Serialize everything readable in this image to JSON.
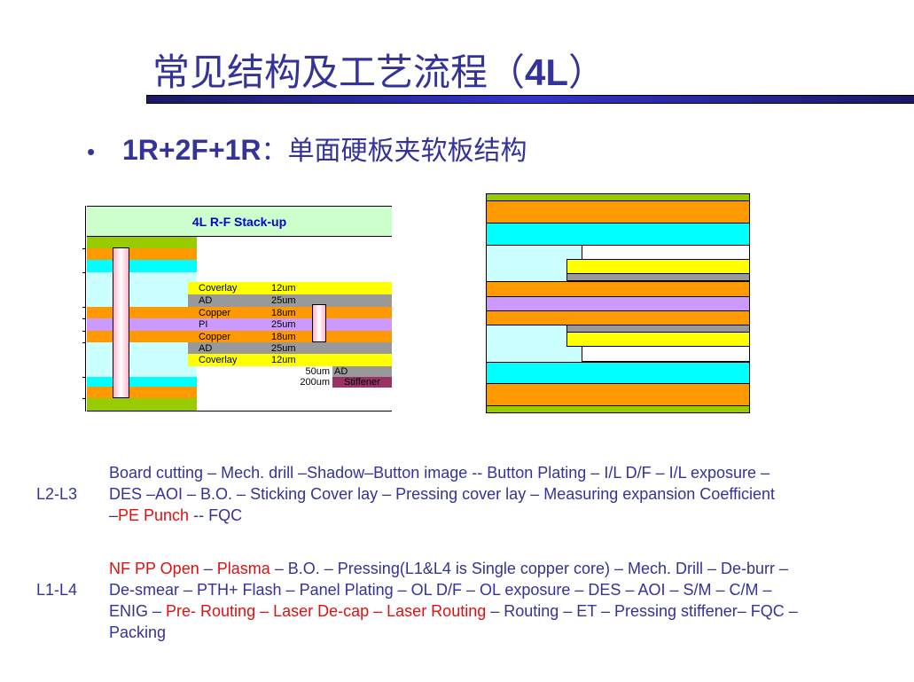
{
  "title": {
    "cn": "常见结构及工艺流程（",
    "bold": "4L",
    "close": "）"
  },
  "bullet": {
    "symbol": "•",
    "code": "1R+2F+1R",
    "sep": "：",
    "cn": "单面硬板夹软板结构"
  },
  "colors": {
    "text": "#333399",
    "red": "#e01010",
    "green": "#99cc00",
    "copper": "#ff9900",
    "cyan": "#00ffff",
    "light_cyan": "#ccffff",
    "coverlay": "#ffff00",
    "adhesive": "#999999",
    "pi": "#cc99ff",
    "stiffener": "#993366",
    "via": "#ffccdd",
    "header": "#ccffcc"
  },
  "stackup": {
    "title": "4L R-F Stack-up",
    "layers": [
      {
        "name": "Coverlay",
        "thickness": "12um"
      },
      {
        "name": "AD",
        "thickness": "25um"
      },
      {
        "name": "Copper",
        "thickness": "18um"
      },
      {
        "name": "PI",
        "thickness": "25um"
      },
      {
        "name": "Copper",
        "thickness": "18um"
      },
      {
        "name": "AD",
        "thickness": "25um"
      },
      {
        "name": "Coverlay",
        "thickness": "12um"
      }
    ],
    "stiffener": [
      {
        "thickness": "50um",
        "name": "AD"
      },
      {
        "thickness": "200um",
        "name": "Stiffener"
      }
    ]
  },
  "flows": [
    {
      "label": "L2-L3",
      "lines": [
        [
          [
            "Board cutting – Mech. drill –Shadow–Button image -- Button Plating – I/L D/F – I/L exposure –",
            0
          ]
        ],
        [
          [
            "DES –AOI  – B.O. – Sticking Cover lay – Pressing cover lay – Measuring expansion Coefficient",
            0
          ]
        ],
        [
          [
            "–",
            0
          ],
          [
            "PE Punch",
            1
          ],
          [
            " -- FQC",
            0
          ]
        ]
      ]
    },
    {
      "label": "L1-L4",
      "lines": [
        [
          [
            "NF PP Open",
            1
          ],
          [
            " – ",
            0
          ],
          [
            "Plasma",
            1
          ],
          [
            " – B.O. – Pressing(L1&L4 is Single copper core) – Mech. Drill – De-burr –",
            0
          ]
        ],
        [
          [
            "De-smear –  PTH+ Flash – Panel Plating –  OL D/F –  OL exposure – DES –  AOI –  S/M  – C/M –",
            0
          ]
        ],
        [
          [
            "ENIG – ",
            0
          ],
          [
            "Pre- Routing – Laser De-cap – Laser Routing",
            1
          ],
          [
            " – Routing – ET – Pressing stiffener– FQC –",
            0
          ]
        ],
        [
          [
            "Packing",
            0
          ]
        ]
      ]
    }
  ]
}
